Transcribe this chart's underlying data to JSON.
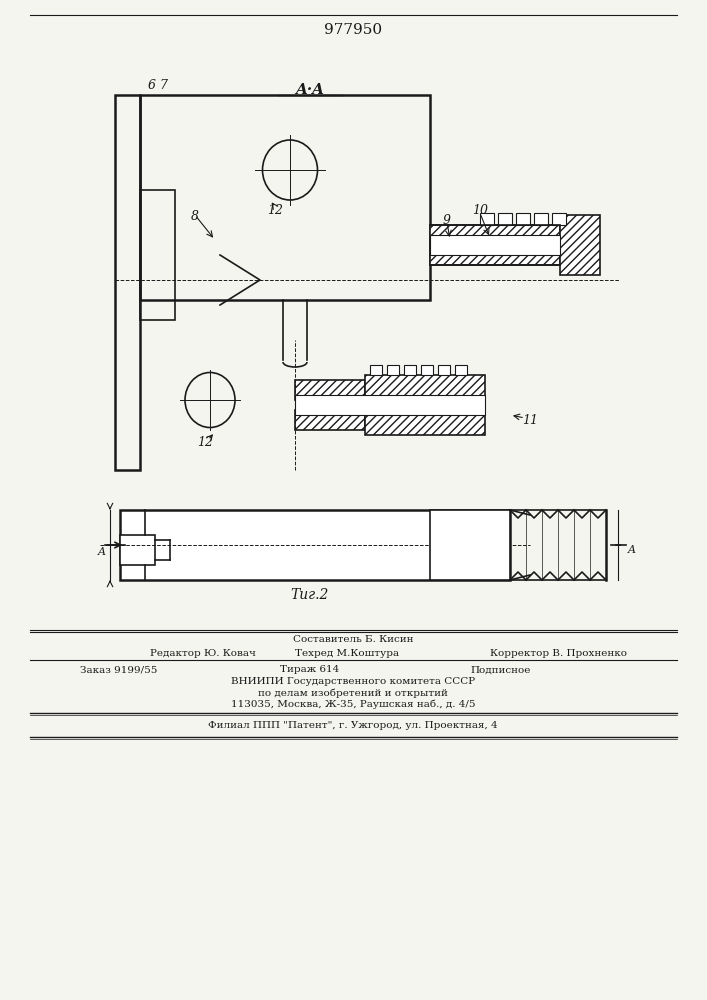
{
  "title": "977950",
  "fig_label": "Τиг.2",
  "section_label": "A·A",
  "bg_color": "#f5f5f0",
  "line_color": "#1a1a1a",
  "hatch_color": "#1a1a1a",
  "footer_lines": [
    "Составитель Б. Кисин",
    "Редактор Ю. Ковач    Техред  М.Коштура         Корректор  В. Прохненко",
    "Заказ 9199/55      Тираж 614           Подписное",
    "ВНИИПИ Государственного комитета СССР",
    "по делам изобретений и открытий",
    "113035, Москва, Ж-35, Раушская наб., д. 4/5",
    "Филиал ППП \"Патент\", г. Ужгород, ул. Проектная, 4"
  ]
}
